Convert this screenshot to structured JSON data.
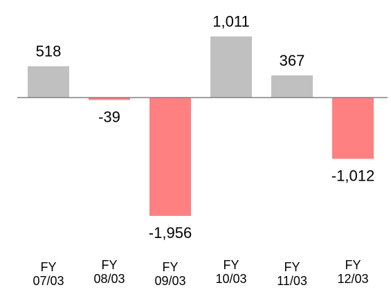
{
  "chart_data": {
    "type": "bar",
    "categories": [
      [
        "FY",
        "07/03"
      ],
      [
        "FY",
        "08/03"
      ],
      [
        "FY",
        "09/03"
      ],
      [
        "FY",
        "10/03"
      ],
      [
        "FY",
        "11/03"
      ],
      [
        "FY",
        "12/03"
      ]
    ],
    "values": [
      518,
      -39,
      -1956,
      1011,
      367,
      -1012
    ],
    "value_labels": [
      "518",
      "-39",
      "-1,956",
      "1,011",
      "367",
      "-1,012"
    ],
    "ylim": [
      -2000,
      1100
    ],
    "grid": false,
    "legend": "none",
    "colors": {
      "positive": "#c0c0c0",
      "negative": "#ff8080",
      "baseline": "#808080"
    }
  }
}
